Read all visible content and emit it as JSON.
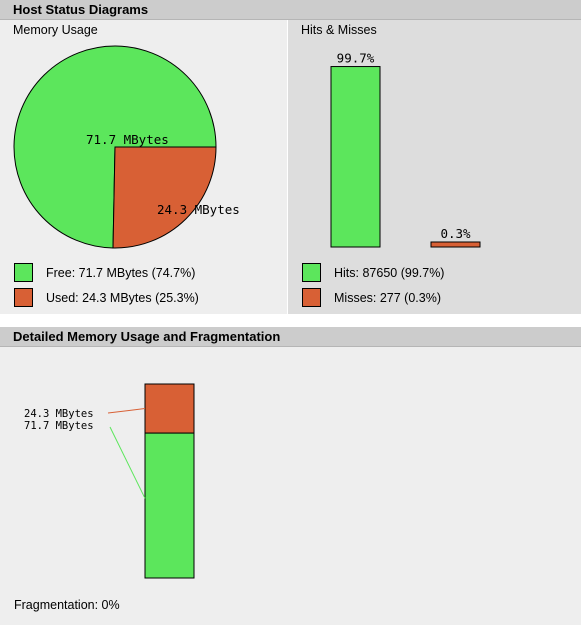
{
  "host_status": {
    "title": "Host Status Diagrams",
    "memory": {
      "title": "Memory Usage",
      "legend": [
        {
          "label": "Free: 71.7 MBytes (74.7%)",
          "color": "#5ce65c"
        },
        {
          "label": "Used: 24.3 MBytes (25.3%)",
          "color": "#d86035"
        }
      ]
    },
    "hits": {
      "title": "Hits & Misses",
      "legend": [
        {
          "label": "Hits: 87650 (99.7%)",
          "color": "#5ce65c"
        },
        {
          "label": "Misses: 277 (0.3%)",
          "color": "#d86035"
        }
      ]
    }
  },
  "detail": {
    "title": "Detailed Memory Usage and Fragmentation",
    "fragmentation_label": "Fragmentation: 0%"
  },
  "chart_data": [
    {
      "type": "pie",
      "title": "Memory Usage",
      "categories": [
        "Free",
        "Used"
      ],
      "values": [
        71.7,
        24.3
      ],
      "labels": [
        "71.7 MBytes",
        "24.3 MBytes"
      ],
      "colors": [
        "#5ce65c",
        "#d86035"
      ]
    },
    {
      "type": "bar",
      "title": "Hits & Misses",
      "categories": [
        "Hits",
        "Misses"
      ],
      "values": [
        99.7,
        0.3
      ],
      "labels": [
        "99.7%",
        "0.3%"
      ],
      "colors": [
        "#5ce65c",
        "#d86035"
      ],
      "ylim": [
        0,
        100
      ]
    },
    {
      "type": "bar",
      "title": "Detailed Memory Usage and Fragmentation",
      "stacked": true,
      "categories": [
        "Used",
        "Free"
      ],
      "values": [
        24.3,
        71.7
      ],
      "labels": [
        "24.3 MBytes",
        "71.7 MBytes"
      ],
      "colors": [
        "#d86035",
        "#5ce65c"
      ]
    }
  ]
}
